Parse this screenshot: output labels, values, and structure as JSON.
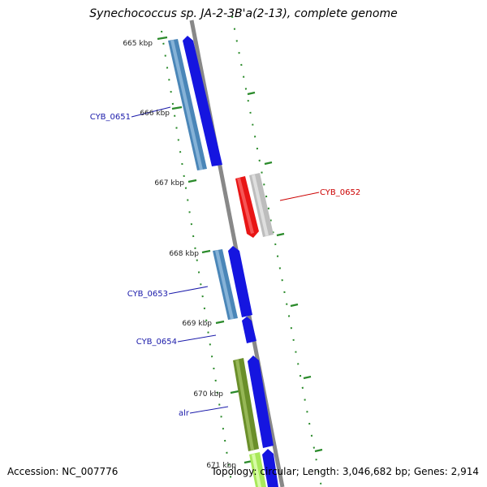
{
  "map": {
    "title": "Synechococcus sp. JA-2-3B'a(2-13), complete genome",
    "accession_label": "Accession: NC_007776",
    "summary_label": "Topology: circular; Length: 3,046,682 bp; Genes: 2,914",
    "colors": {
      "backbone": "#888888",
      "tick": "#2a8a2a",
      "gene_blue": "#1515e0",
      "gene_blue_tip": "#3333ff",
      "gene_steel": "#4a86b8",
      "gene_red": "#e81515",
      "gene_grey": "#bdbdbd",
      "gene_olive": "#6a8f2a",
      "gene_lime": "#a8e85a",
      "label_blue": "#1a1aaa",
      "label_red": "#cc0000"
    },
    "scale": [
      {
        "label": "665 kbp"
      },
      {
        "label": "666 kbp"
      },
      {
        "label": "667 kbp"
      },
      {
        "label": "668 kbp"
      },
      {
        "label": "669 kbp"
      },
      {
        "label": "670 kbp"
      },
      {
        "label": "671 kbp"
      }
    ],
    "gene_labels": [
      {
        "name": "CYB_0651",
        "color": "#1a1aaa"
      },
      {
        "name": "CYB_0652",
        "color": "#cc0000"
      },
      {
        "name": "CYB_0653",
        "color": "#1a1aaa"
      },
      {
        "name": "CYB_0654",
        "color": "#1a1aaa"
      },
      {
        "name": "alr",
        "color": "#1a1aaa"
      }
    ]
  }
}
